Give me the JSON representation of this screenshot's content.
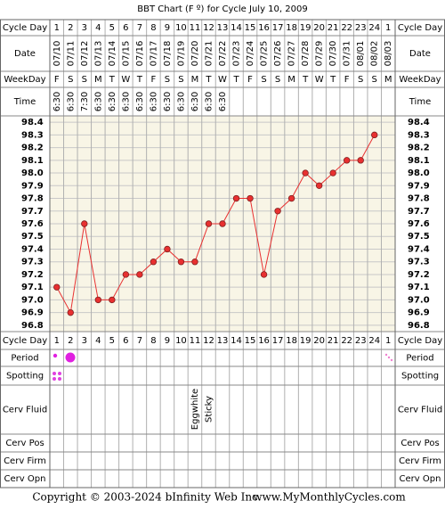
{
  "chart_data": {
    "type": "line",
    "title": "BBT Chart (F º) for Cycle July 10, 2009",
    "categories": [
      "1",
      "2",
      "3",
      "4",
      "5",
      "6",
      "7",
      "8",
      "9",
      "10",
      "11",
      "12",
      "13",
      "14",
      "15",
      "16",
      "17",
      "18",
      "19",
      "20",
      "21",
      "22",
      "23",
      "24",
      "1"
    ],
    "dates": [
      "07/10",
      "07/11",
      "07/12",
      "07/13",
      "07/14",
      "07/15",
      "07/16",
      "07/17",
      "07/18",
      "07/19",
      "07/20",
      "07/21",
      "07/22",
      "07/23",
      "07/24",
      "07/25",
      "07/26",
      "07/27",
      "07/28",
      "07/29",
      "07/30",
      "07/31",
      "08/01",
      "08/02",
      "08/03"
    ],
    "weekdays": [
      "F",
      "S",
      "S",
      "M",
      "T",
      "W",
      "T",
      "F",
      "S",
      "S",
      "M",
      "T",
      "W",
      "T",
      "F",
      "S",
      "S",
      "M",
      "T",
      "W",
      "T",
      "F",
      "S",
      "S",
      "M"
    ],
    "times": [
      "6:30",
      "6:30",
      "7:30",
      "6:30",
      "6:30",
      "6:30",
      "6:30",
      "6:30",
      "6:30",
      "6:30",
      "6:30",
      "6:30",
      "6:30",
      null,
      null,
      null,
      null,
      null,
      null,
      null,
      null,
      null,
      null,
      null,
      null
    ],
    "values": [
      97.1,
      96.9,
      97.6,
      97.0,
      97.0,
      97.2,
      97.2,
      97.3,
      97.4,
      97.3,
      97.3,
      97.6,
      97.6,
      97.8,
      97.8,
      97.2,
      97.7,
      97.8,
      98.0,
      97.9,
      98.0,
      98.1,
      98.1,
      98.3,
      null
    ],
    "color": "#e83030",
    "ylim": [
      96.75,
      98.45
    ],
    "yticks": [
      {
        "value": 98.4,
        "label": "98.4"
      },
      {
        "value": 98.3,
        "label": "98.3"
      },
      {
        "value": 98.2,
        "label": "98.2"
      },
      {
        "value": 98.1,
        "label": "98.1"
      },
      {
        "value": 98,
        "label": "98.0"
      },
      {
        "value": 97.9,
        "label": "97.9"
      },
      {
        "value": 97.8,
        "label": "97.8"
      },
      {
        "value": 97.7,
        "label": "97.7"
      },
      {
        "value": 97.6,
        "label": "97.6"
      },
      {
        "value": 97.5,
        "label": "97.5"
      },
      {
        "value": 97.4,
        "label": "97.4"
      },
      {
        "value": 97.3,
        "label": "97.3"
      },
      {
        "value": 97.2,
        "label": "97.2"
      },
      {
        "value": 97.1,
        "label": "97.1"
      },
      {
        "value": 97,
        "label": "97.0"
      },
      {
        "value": 96.9,
        "label": "96.9"
      },
      {
        "value": 96.8,
        "label": "96.8"
      }
    ],
    "grid": true,
    "cerv_fluid": [
      null,
      null,
      null,
      null,
      null,
      null,
      null,
      null,
      null,
      null,
      "Eggwhite",
      "Sticky",
      null,
      null,
      null,
      null,
      null,
      null,
      null,
      null,
      null,
      null,
      null,
      null,
      null
    ],
    "row_labels": {
      "cycle_day": "Cycle Day",
      "date": "Date",
      "weekday": "WeekDay",
      "time": "Time",
      "period": "Period",
      "spotting": "Spotting",
      "cerv_fluid": "Cerv Fluid",
      "cerv_pos": "Cerv Pos",
      "cerv_firm": "Cerv Firm",
      "cerv_opn": "Cerv Opn"
    },
    "footer": {
      "copyright": "Copyright © 2003-2024 bInfinity Web Inc.",
      "site": "www.MyMonthlyCycles.com"
    }
  }
}
